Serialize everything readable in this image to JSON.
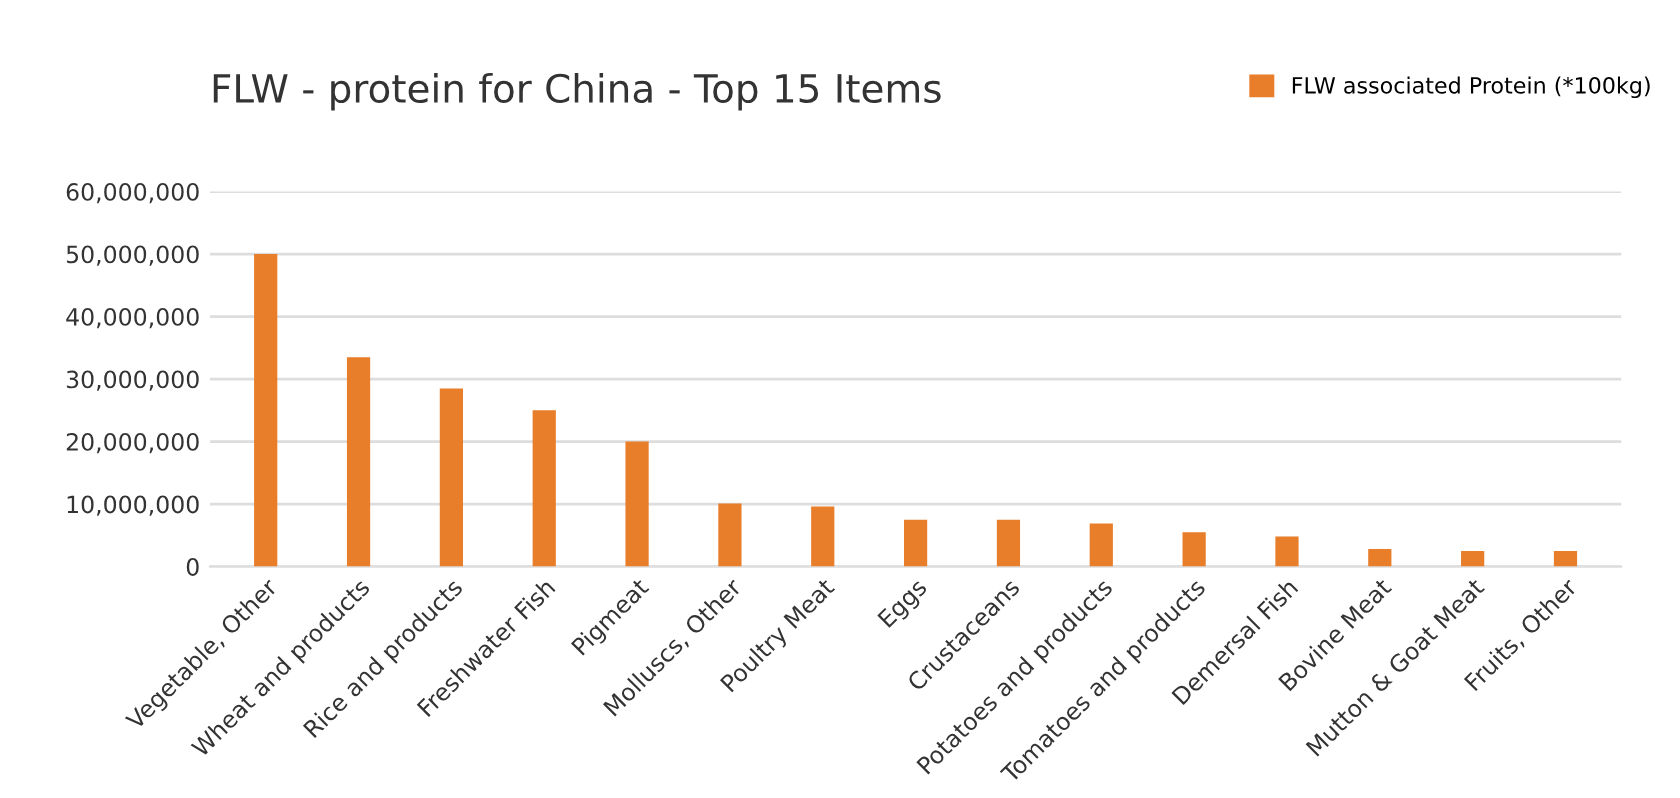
{
  "chart_data": {
    "type": "bar",
    "title": "FLW - protein for China - Top 15 Items",
    "categories": [
      "Vegetable, Other",
      "Wheat and products",
      "Rice and products",
      "Freshwater Fish",
      "Pigmeat",
      "Molluscs, Other",
      "Poultry Meat",
      "Eggs",
      "Crustaceans",
      "Potatoes and products",
      "Tomatoes and products",
      "Demersal Fish",
      "Bovine Meat",
      "Mutton & Goat Meat",
      "Fruits, Other"
    ],
    "series": [
      {
        "name": "FLW associated Protein (*100kg)",
        "color": "#e87d2a",
        "values": [
          50000000,
          33500000,
          28500000,
          25000000,
          20000000,
          10100000,
          9600000,
          7500000,
          7500000,
          6900000,
          5500000,
          4800000,
          2800000,
          2500000,
          2500000
        ]
      }
    ],
    "ylim": [
      0,
      60000000
    ],
    "yticks": [
      {
        "value": 0,
        "label": "0"
      },
      {
        "value": 10000000,
        "label": "10,000,000"
      },
      {
        "value": 20000000,
        "label": "20,000,000"
      },
      {
        "value": 30000000,
        "label": "30,000,000"
      },
      {
        "value": 40000000,
        "label": "40,000,000"
      },
      {
        "value": 50000000,
        "label": "50,000,000"
      },
      {
        "value": 60000000,
        "label": "60,000,000"
      }
    ],
    "grid": "y",
    "legend": "top right"
  }
}
